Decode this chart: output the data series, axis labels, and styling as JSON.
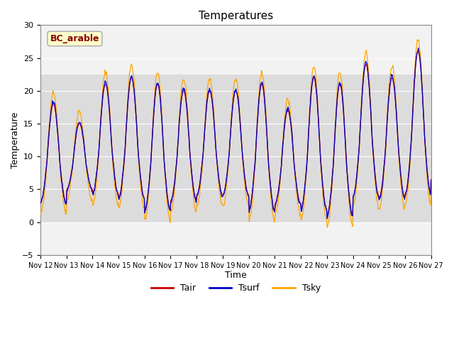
{
  "title": "Temperatures",
  "xlabel": "Time",
  "ylabel": "Temperature",
  "ylim": [
    -5,
    30
  ],
  "annotation_text": "BC_arable",
  "annotation_color": "#8B0000",
  "annotation_bg": "#FFFFCC",
  "annotation_edge": "#AAAAAA",
  "bg_band_low": 0,
  "bg_band_high": 22.5,
  "bg_band_color": "#DCDCDC",
  "plot_bg_color": "#F2F2F2",
  "grid_color": "#FFFFFF",
  "tair_color": "#CC0000",
  "tsurf_color": "#0000CC",
  "tsky_color": "#FFA500",
  "x_tick_labels": [
    "Nov 12",
    "Nov 13",
    "Nov 14",
    "Nov 15",
    "Nov 16",
    "Nov 17",
    "Nov 18",
    "Nov 19",
    "Nov 20",
    "Nov 21",
    "Nov 22",
    "Nov 23",
    "Nov 24",
    "Nov 25",
    "Nov 26",
    "Nov 27"
  ],
  "x_tick_positions": [
    12,
    13,
    14,
    15,
    16,
    17,
    18,
    19,
    20,
    21,
    22,
    23,
    24,
    25,
    26,
    27
  ],
  "yticks": [
    -5,
    0,
    5,
    10,
    15,
    20,
    25,
    30
  ]
}
